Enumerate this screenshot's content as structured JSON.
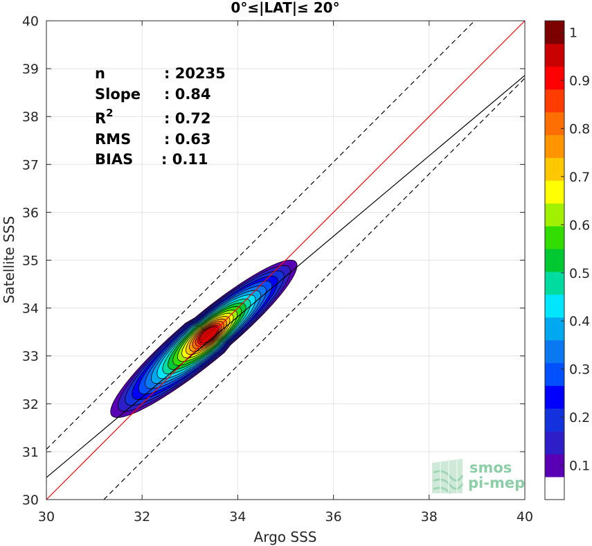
{
  "chart_data": {
    "type": "contour",
    "title": "0°≤|LAT|≤ 20°",
    "xlabel": "Argo SSS",
    "ylabel": "Satellite SSS",
    "xlim": [
      30,
      40
    ],
    "ylim": [
      30,
      40
    ],
    "xticks": [
      "30",
      "32",
      "34",
      "36",
      "38",
      "40"
    ],
    "yticks": [
      "30",
      "31",
      "32",
      "33",
      "34",
      "35",
      "36",
      "37",
      "38",
      "39",
      "40"
    ],
    "grid": true,
    "stats": [
      {
        "label": "n",
        "value": ": 20235"
      },
      {
        "label": "Slope",
        "value": ": 0.84"
      },
      {
        "label": "R",
        "sup": "2",
        "value": ": 0.72"
      },
      {
        "label": "RMS",
        "value": ": 0.63"
      },
      {
        "label": "BIAS",
        "value": ": 0.11"
      }
    ],
    "lines": {
      "identity": {
        "slope": 1.0,
        "intercept": 0.0,
        "color": "#ff0000"
      },
      "regression": {
        "slope": 0.84,
        "intercept": 5.26,
        "color": "#000000"
      },
      "upper_dashed": {
        "slope": 1.0,
        "intercept": 1.05,
        "color": "#000000"
      },
      "lower_dashed": {
        "slope": 1.0,
        "intercept": -1.2,
        "color": "#000000"
      }
    },
    "density_peak": {
      "x": 33.4,
      "y": 33.45
    },
    "contour_levels": [
      0.05,
      0.1,
      0.15,
      0.2,
      0.25,
      0.3,
      0.35,
      0.4,
      0.45,
      0.5,
      0.55,
      0.6,
      0.65,
      0.7,
      0.75,
      0.8,
      0.85,
      0.9,
      0.95
    ],
    "colorbar": {
      "ticks": [
        "0.1",
        "0.2",
        "0.3",
        "0.4",
        "0.5",
        "0.6",
        "0.7",
        "0.8",
        "0.9",
        "1"
      ],
      "colors": [
        "#ffffff",
        "#5a00b4",
        "#2d1ec8",
        "#1432dc",
        "#0000ff",
        "#0050ff",
        "#0a78f0",
        "#00a8f0",
        "#00e6ff",
        "#00dca0",
        "#00c832",
        "#32dc00",
        "#a0f000",
        "#ffff00",
        "#ffc800",
        "#ff9600",
        "#ff6e00",
        "#ff3c00",
        "#ff0000",
        "#c80000",
        "#7d0000"
      ]
    }
  },
  "logo": {
    "line1": "smos",
    "line2": "pi-mep"
  }
}
